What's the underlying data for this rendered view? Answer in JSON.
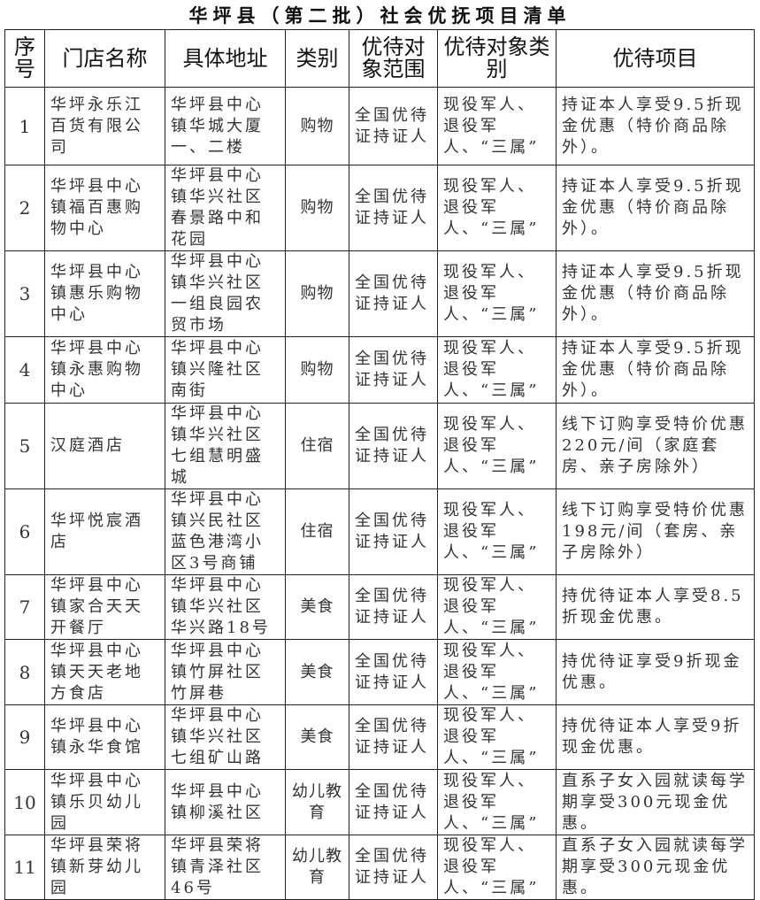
{
  "title": "华坪县（第二批）社会优抚项目清单",
  "headers": [
    "序号",
    "门店名称",
    "具体地址",
    "类别",
    "优待对象范围",
    "优待对象类别",
    "优待项目"
  ],
  "rows": [
    [
      "1",
      "华坪永乐江百货有限公司",
      "华坪县中心镇华城大厦一、二楼",
      "购物",
      "全国优待证持证人",
      "现役军人、退役军人、“三属”",
      "持证本人享受9.5折现金优惠（特价商品除外）。"
    ],
    [
      "2",
      "华坪县中心镇福百惠购物中心",
      "华坪县中心镇华兴社区春景路中和花园",
      "购物",
      "全国优待证持证人",
      "现役军人、退役军人、“三属”",
      "持证本人享受9.5折现金优惠（特价商品除外）。"
    ],
    [
      "3",
      "华坪县中心镇惠乐购物中心",
      "华坪县中心镇华兴社区一组良园农贸市场",
      "购物",
      "全国优待证持证人",
      "现役军人、退役军人、“三属”",
      "持证本人享受9.5折现金优惠（特价商品除外）。"
    ],
    [
      "4",
      "华坪县中心镇永惠购物中心",
      "华坪县中心镇兴隆社区南街",
      "购物",
      "全国优待证持证人",
      "现役军人、退役军人、“三属”",
      "持证本人享受9.5折现金优惠（特价商品除外）。"
    ],
    [
      "5",
      "汉庭酒店",
      "华坪县中心镇华兴社区七组慧明盛城",
      "住宿",
      "全国优待证持证人",
      "现役军人、退役军人、“三属”",
      "线下订购享受特价优惠220元/间（家庭套房、亲子房除外）"
    ],
    [
      "6",
      "华坪悦宸酒店",
      "华坪县中心镇兴民社区蓝色港湾小区3号商铺",
      "住宿",
      "全国优待证持证人",
      "现役军人、退役军人、“三属”",
      "线下订购享受特价优惠198元/间（套房、亲子房除外）"
    ],
    [
      "7",
      "华坪县中心镇家合天天开餐厅",
      "华坪县中心镇华兴社区华兴路18号",
      "美食",
      "全国优待证持证人",
      "现役军人、退役军人、“三属”",
      "持优待证本人享受8.5折现金优惠。"
    ],
    [
      "8",
      "华坪县中心镇天天老地方食店",
      "华坪县中心镇竹屏社区竹屏巷",
      "美食",
      "全国优待证持证人",
      "现役军人、退役军人、“三属”",
      "持优待证享受9折现金优惠。"
    ],
    [
      "9",
      "华坪县中心镇永华食馆",
      "华坪县中心镇华兴社区七组矿山路",
      "美食",
      "全国优待证持证人",
      "现役军人、退役军人、“三属”",
      "持优待证本人享受9折现金优惠。"
    ],
    [
      "10",
      "华坪县中心镇乐贝幼儿园",
      "华坪县中心镇柳溪社区",
      "幼儿教育",
      "全国优待证持证人",
      "现役军人、退役军人、“三属”",
      "直系子女入园就读每学期享受300元现金优惠。"
    ],
    [
      "11",
      "华坪县荣将镇新芽幼儿园",
      "华坪县荣将镇青泽社区46号",
      "幼儿教育",
      "全国优待证持证人",
      "现役军人、退役军人、“三属”",
      "直系子女入园就读每学期享受300元现金优惠。"
    ]
  ]
}
